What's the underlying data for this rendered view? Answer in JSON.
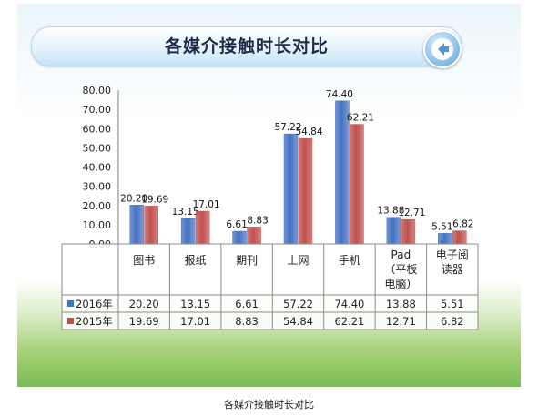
{
  "page": {
    "title": "各媒介接触时长对比",
    "caption": "各媒介接触时长对比",
    "back_icon": "back-arrow-icon"
  },
  "colors": {
    "series_2016": "#4472c4",
    "series_2015": "#c0504d"
  },
  "chart_data": {
    "type": "bar",
    "title": "各媒介接触时长对比",
    "xlabel": "",
    "ylabel": "",
    "ylim": [
      0,
      80
    ],
    "yticks": [
      "0.00",
      "10.00",
      "20.00",
      "30.00",
      "40.00",
      "50.00",
      "60.00",
      "70.00",
      "80.00"
    ],
    "grid": false,
    "legend": "in data table",
    "categories": [
      [
        "图书"
      ],
      [
        "报纸"
      ],
      [
        "期刊"
      ],
      [
        "上网"
      ],
      [
        "手机"
      ],
      [
        "Pad",
        "（平板",
        "电脑）"
      ],
      [
        "电子阅",
        "读器"
      ]
    ],
    "series": [
      {
        "name": "2016年",
        "values": [
          20.2,
          13.15,
          6.61,
          57.22,
          74.4,
          13.88,
          5.51
        ],
        "labels": [
          "20.20",
          "13.15",
          "6.61",
          "57.22",
          "74.40",
          "13.88",
          "5.51"
        ]
      },
      {
        "name": "2015年",
        "values": [
          19.69,
          17.01,
          8.83,
          54.84,
          62.21,
          12.71,
          6.82
        ],
        "labels": [
          "19.69",
          "17.01",
          "8.83",
          "54.84",
          "62.21",
          "12.71",
          "6.82"
        ]
      }
    ]
  }
}
